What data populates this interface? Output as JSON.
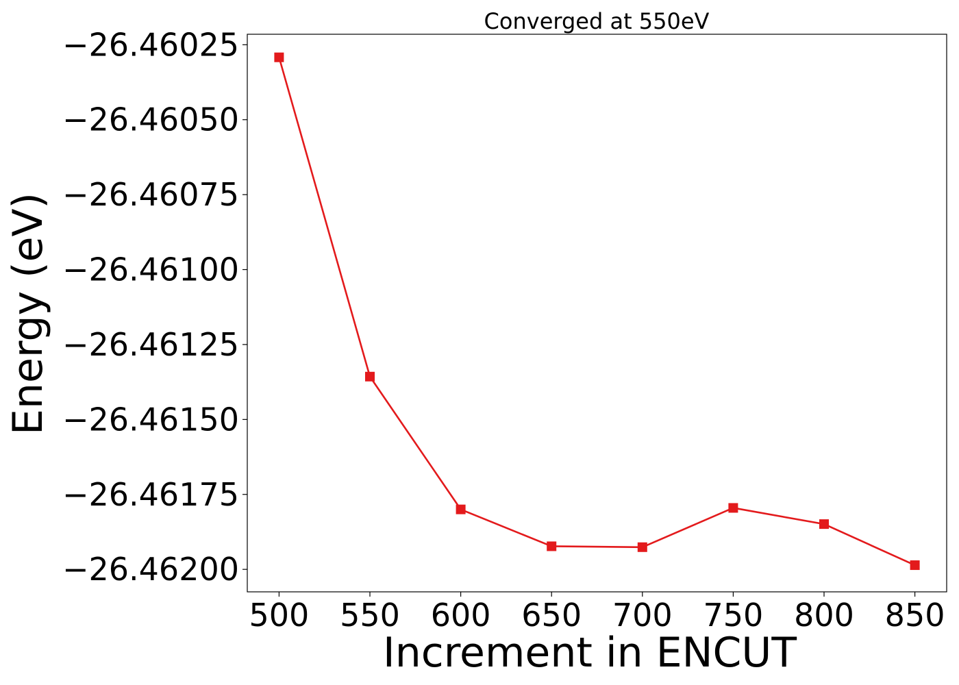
{
  "chart_data": {
    "type": "line",
    "title": "Converged at 550eV",
    "xlabel": "Increment in ENCUT",
    "ylabel": "Energy (eV)",
    "xlim": [
      482.5,
      867.5
    ],
    "ylim": [
      -26.462075,
      -26.460215
    ],
    "x_ticks": [
      500,
      550,
      600,
      650,
      700,
      750,
      800,
      850
    ],
    "x_tick_labels": [
      "500",
      "550",
      "600",
      "650",
      "700",
      "750",
      "800",
      "850"
    ],
    "y_ticks": [
      -26.46025,
      -26.4605,
      -26.46075,
      -26.461,
      -26.46125,
      -26.4615,
      -26.46175,
      -26.462
    ],
    "y_tick_labels": [
      "−26.46025",
      "−26.46050",
      "−26.46075",
      "−26.46100",
      "−26.46125",
      "−26.46150",
      "−26.46175",
      "−26.46200"
    ],
    "grid": false,
    "series": [
      {
        "color": "#e31a1c",
        "marker": "square",
        "x": [
          500,
          550,
          600,
          650,
          700,
          750,
          800,
          850
        ],
        "y": [
          -26.460292,
          -26.461357,
          -26.4618,
          -26.461923,
          -26.461926,
          -26.461795,
          -26.461849,
          -26.461986
        ]
      }
    ]
  }
}
